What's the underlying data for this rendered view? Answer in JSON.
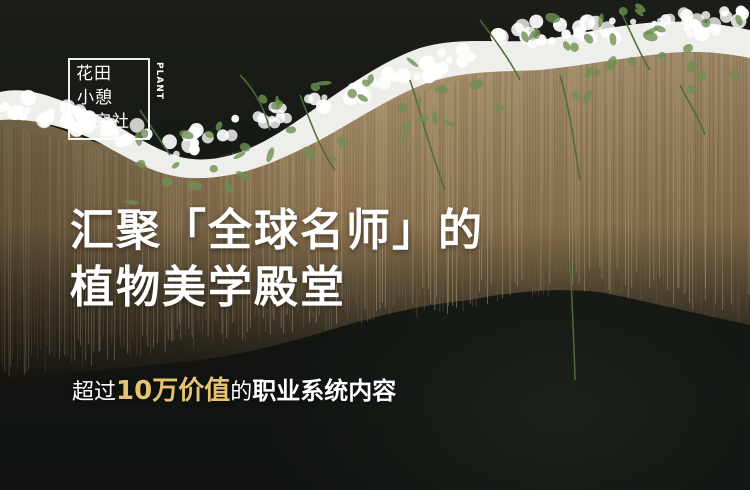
{
  "logo": {
    "line1": "花田",
    "line2": "小憩",
    "line3": "研究社",
    "side_text": "PLANT"
  },
  "headline": {
    "line1": "汇聚「全球名师」的",
    "line2": "植物美学殿堂"
  },
  "subtitle": {
    "prefix": "超过",
    "highlight": "10万价值",
    "middle": "的",
    "suffix": "职业系统内容"
  },
  "colors": {
    "background": "#141714",
    "installation_fiber": "#a8906a",
    "flower_white": "#f2f2ee",
    "accent_gold": "#e6c372",
    "text": "#ffffff"
  }
}
